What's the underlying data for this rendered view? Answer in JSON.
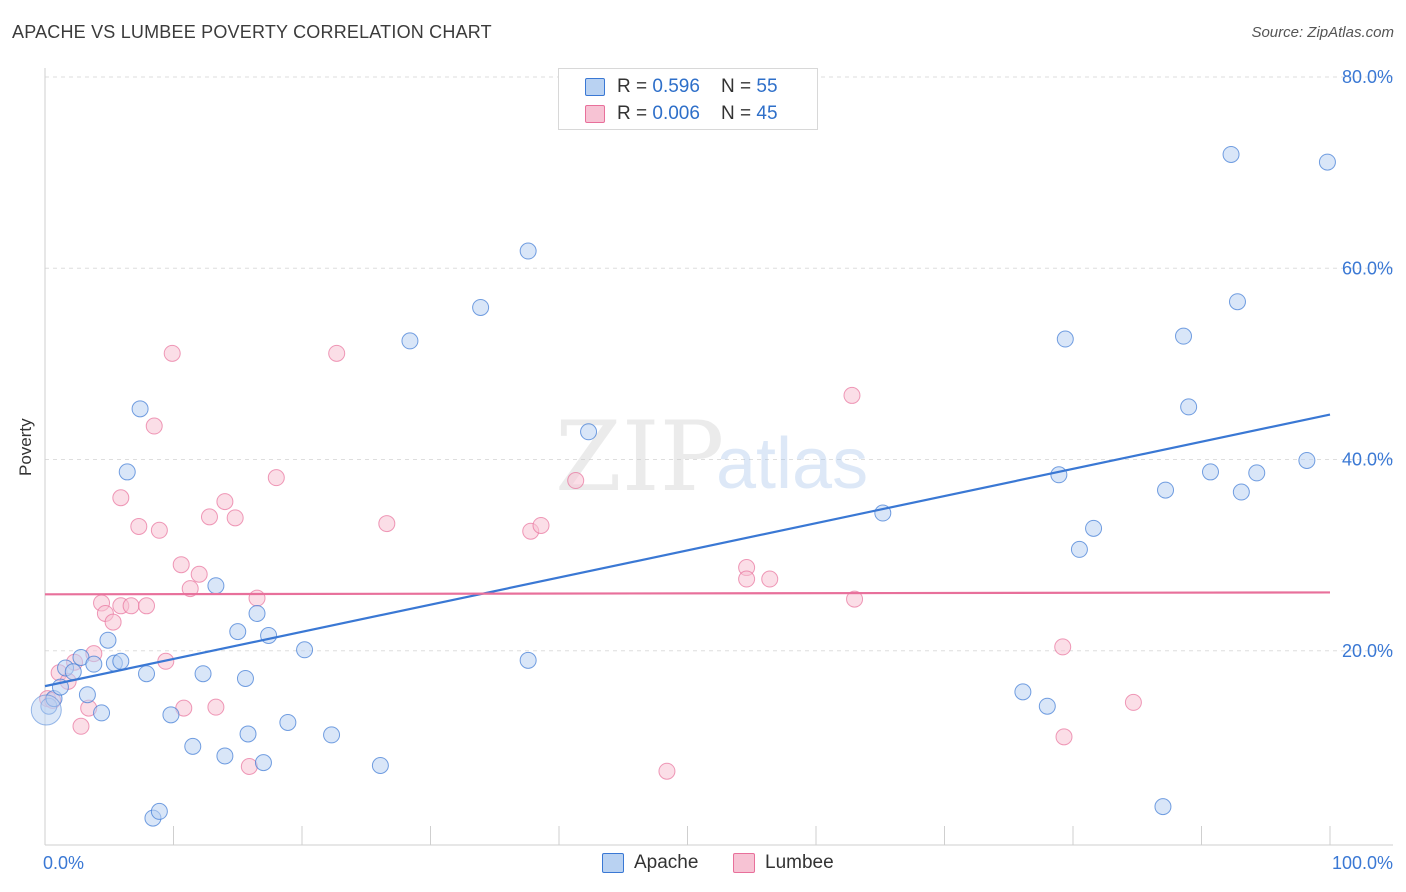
{
  "title": "APACHE VS LUMBEE POVERTY CORRELATION CHART",
  "source": "Source: ZipAtlas.com",
  "watermark": {
    "zip": "ZIP",
    "atlas": "atlas"
  },
  "legend_top": {
    "apache": {
      "r_label": "R = ",
      "r_value": "0.596",
      "n_label": "N = ",
      "n_value": "55"
    },
    "lumbee": {
      "r_label": "R = ",
      "r_value": "0.006",
      "n_label": "N = ",
      "n_value": "45"
    }
  },
  "chart_data": {
    "type": "scatter",
    "title": "APACHE VS LUMBEE POVERTY CORRELATION CHART",
    "xlabel": "",
    "ylabel": "Poverty",
    "xlim": [
      0,
      100
    ],
    "ylim": [
      0,
      80
    ],
    "x_tick_labels": [
      "0.0%",
      "100.0%"
    ],
    "y_ticks": [
      20,
      40,
      60,
      80
    ],
    "y_tick_labels": [
      "20.0%",
      "40.0%",
      "60.0%",
      "80.0%"
    ],
    "grid": true,
    "colors": {
      "apache": "#3a78d4",
      "apache_fill": "#b9d2f2",
      "lumbee": "#e8709b",
      "lumbee_fill": "#f7c3d4",
      "axis_text": "#3a78d4"
    },
    "series": [
      {
        "name": "Apache",
        "R": 0.596,
        "N": 55,
        "trend": [
          [
            0,
            16.3
          ],
          [
            100,
            44.7
          ]
        ],
        "points": [
          [
            0.3,
            14.2
          ],
          [
            0.7,
            15.0
          ],
          [
            1.2,
            16.2
          ],
          [
            1.6,
            18.2
          ],
          [
            2.2,
            17.8
          ],
          [
            2.8,
            19.3
          ],
          [
            3.3,
            15.4
          ],
          [
            3.8,
            18.6
          ],
          [
            4.4,
            13.5
          ],
          [
            4.9,
            21.1
          ],
          [
            5.4,
            18.7
          ],
          [
            5.9,
            18.9
          ],
          [
            7.4,
            45.3
          ],
          [
            7.9,
            17.6
          ],
          [
            6.4,
            38.7
          ],
          [
            8.4,
            2.5
          ],
          [
            8.9,
            3.2
          ],
          [
            9.8,
            13.3
          ],
          [
            11.5,
            10.0
          ],
          [
            12.3,
            17.6
          ],
          [
            13.3,
            26.8
          ],
          [
            14.0,
            9.0
          ],
          [
            15.0,
            22.0
          ],
          [
            15.6,
            17.1
          ],
          [
            15.8,
            11.3
          ],
          [
            16.5,
            23.9
          ],
          [
            17.0,
            8.3
          ],
          [
            17.4,
            21.6
          ],
          [
            18.9,
            12.5
          ],
          [
            20.2,
            20.1
          ],
          [
            22.3,
            11.2
          ],
          [
            26.1,
            8.0
          ],
          [
            28.4,
            52.4
          ],
          [
            33.9,
            55.9
          ],
          [
            37.6,
            61.8
          ],
          [
            37.6,
            19.0
          ],
          [
            42.3,
            42.9
          ],
          [
            65.2,
            34.4
          ],
          [
            76.1,
            15.7
          ],
          [
            78.0,
            14.2
          ],
          [
            78.9,
            38.4
          ],
          [
            79.4,
            52.6
          ],
          [
            80.5,
            30.6
          ],
          [
            81.6,
            32.8
          ],
          [
            87.2,
            36.8
          ],
          [
            87.0,
            3.7
          ],
          [
            88.6,
            52.9
          ],
          [
            89.0,
            45.5
          ],
          [
            90.7,
            38.7
          ],
          [
            92.3,
            71.9
          ],
          [
            92.8,
            56.5
          ],
          [
            93.1,
            36.6
          ],
          [
            94.3,
            38.6
          ],
          [
            98.2,
            39.9
          ],
          [
            99.8,
            71.1
          ]
        ]
      },
      {
        "name": "Lumbee",
        "R": 0.006,
        "N": 45,
        "trend": [
          [
            0,
            25.9
          ],
          [
            100,
            26.1
          ]
        ],
        "points": [
          [
            0.2,
            15.0
          ],
          [
            1.1,
            17.7
          ],
          [
            1.8,
            16.8
          ],
          [
            2.3,
            18.8
          ],
          [
            2.8,
            12.1
          ],
          [
            3.4,
            14.0
          ],
          [
            3.8,
            19.7
          ],
          [
            4.4,
            25.0
          ],
          [
            4.7,
            23.9
          ],
          [
            5.3,
            23.0
          ],
          [
            5.9,
            24.7
          ],
          [
            5.9,
            36.0
          ],
          [
            6.7,
            24.7
          ],
          [
            7.3,
            33.0
          ],
          [
            7.9,
            24.7
          ],
          [
            8.5,
            43.5
          ],
          [
            8.9,
            32.6
          ],
          [
            9.4,
            18.9
          ],
          [
            9.9,
            51.1
          ],
          [
            10.6,
            29.0
          ],
          [
            10.8,
            14.0
          ],
          [
            11.3,
            26.5
          ],
          [
            12.0,
            28.0
          ],
          [
            12.8,
            34.0
          ],
          [
            13.3,
            14.1
          ],
          [
            14.0,
            35.6
          ],
          [
            14.8,
            33.9
          ],
          [
            15.9,
            7.9
          ],
          [
            16.5,
            25.5
          ],
          [
            18.0,
            38.1
          ],
          [
            22.7,
            51.1
          ],
          [
            26.6,
            33.3
          ],
          [
            37.8,
            32.5
          ],
          [
            38.6,
            33.1
          ],
          [
            41.3,
            37.8
          ],
          [
            48.4,
            7.4
          ],
          [
            54.6,
            28.7
          ],
          [
            54.6,
            27.5
          ],
          [
            56.4,
            27.5
          ],
          [
            62.8,
            46.7
          ],
          [
            63.0,
            25.4
          ],
          [
            79.2,
            20.4
          ],
          [
            79.3,
            11.0
          ],
          [
            84.7,
            14.6
          ],
          [
            0.6,
            14.8
          ]
        ]
      }
    ]
  },
  "legend_bottom": {
    "apache": "Apache",
    "lumbee": "Lumbee"
  }
}
